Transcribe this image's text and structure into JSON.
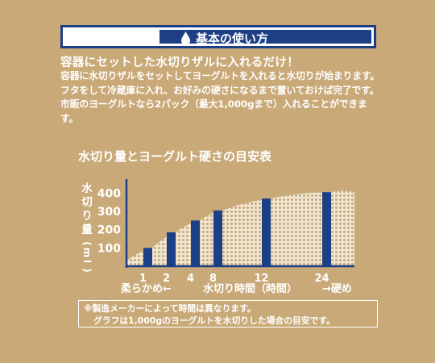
{
  "header": {
    "title": "基本の使い方",
    "icon": "water-drop-icon"
  },
  "lead": "容器にセットした水切りザルに入れるだけ！",
  "description": "容器に水切りザルをセットしてヨーグルトを入れると水切りが始まります。フタをして冷蔵庫に入れ、お好みの硬さになるまで置いておけば完了です。市販のヨーグルトなら2パック（最大1,000gまで）入れることができます。",
  "chart_title": "水切り量とヨーグルト硬さの目安表",
  "chart_data": {
    "type": "bar",
    "categories": [
      "1",
      "2",
      "4",
      "8",
      "12",
      "24"
    ],
    "values": [
      100,
      185,
      250,
      305,
      370,
      405
    ],
    "xlabel": "水切り時間（時間）",
    "ylabel": "水切り量（ml）",
    "ylim": [
      0,
      450
    ],
    "yticks": [
      100,
      200,
      300,
      400
    ],
    "x_left_label": "柔らかめ←",
    "x_right_label": "→硬め",
    "bar_color": "#1c3f86"
  },
  "note_lines": [
    "※製造メーカーによって時間は異なります。",
    "グラフは1,000gのヨーグルトを水切りした場合の目安です。"
  ]
}
